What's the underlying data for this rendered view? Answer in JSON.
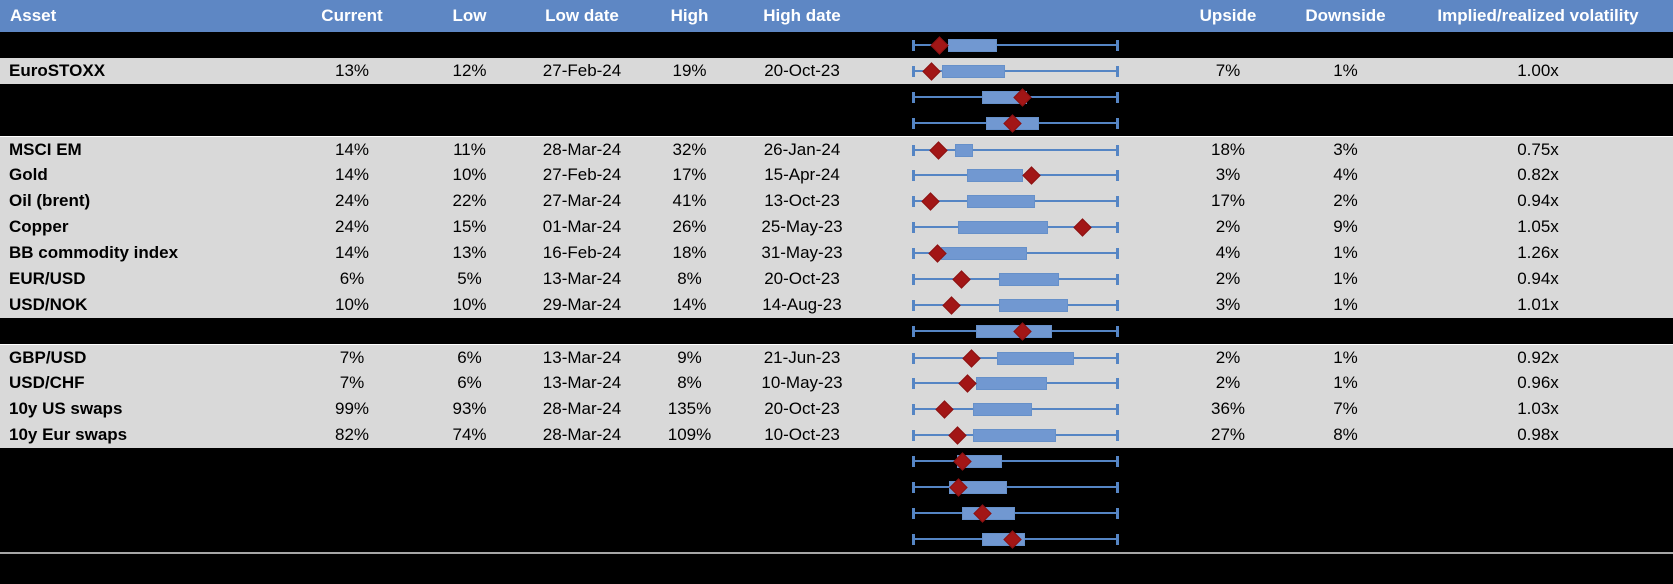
{
  "title": "Implied volatility table with range box plots",
  "colors": {
    "header_bg": "#5e87c4",
    "header_text": "#ffffff",
    "row_bg": "#d9d9d9",
    "spacer_bg": "#000000",
    "box_fill": "#7198d1",
    "whisker": "#5585c4",
    "marker": "#a21616",
    "divider": "#a6a6a6"
  },
  "chart_data": {
    "type": "table",
    "note": "Each row shows a 1y implied-vol range box plot; box/marker values are fractions of the low-high whisker span (0 = left whisker cap, 1 = right whisker cap).",
    "columns": [
      "Asset",
      "Current",
      "Low",
      "Low date",
      "High",
      "High date",
      "",
      "Upside",
      "Downside",
      "Implied/realized volatility"
    ],
    "rows": [
      {
        "style": "black",
        "box": [
          0.17,
          0.41
        ],
        "marker": 0.13
      },
      {
        "style": "data",
        "asset": "EuroSTOXX",
        "current": "13%",
        "low": "12%",
        "low_date": "27-Feb-24",
        "high": "19%",
        "high_date": "20-Oct-23",
        "upside": "7%",
        "downside": "1%",
        "implied": "1.00x",
        "box": [
          0.14,
          0.45
        ],
        "marker": 0.09
      },
      {
        "style": "black",
        "box": [
          0.34,
          0.56
        ],
        "marker": 0.535
      },
      {
        "style": "black",
        "box": [
          0.36,
          0.62
        ],
        "marker": 0.49
      },
      {
        "style": "data",
        "border_top": true,
        "asset": "MSCI EM",
        "current": "14%",
        "low": "11%",
        "low_date": "28-Mar-24",
        "high": "32%",
        "high_date": "26-Jan-24",
        "upside": "18%",
        "downside": "3%",
        "implied": "0.75x",
        "box": [
          0.205,
          0.295
        ],
        "marker": 0.125
      },
      {
        "style": "data",
        "asset": "Gold",
        "current": "14%",
        "low": "10%",
        "low_date": "27-Feb-24",
        "high": "17%",
        "high_date": "15-Apr-24",
        "upside": "3%",
        "downside": "4%",
        "implied": "0.82x",
        "box": [
          0.265,
          0.54
        ],
        "marker": 0.58
      },
      {
        "style": "data",
        "asset": "Oil (brent)",
        "current": "24%",
        "low": "22%",
        "low_date": "27-Mar-24",
        "high": "41%",
        "high_date": "13-Oct-23",
        "upside": "17%",
        "downside": "2%",
        "implied": "0.94x",
        "box": [
          0.265,
          0.6
        ],
        "marker": 0.085
      },
      {
        "style": "data",
        "asset": "Copper",
        "current": "24%",
        "low": "15%",
        "low_date": "01-Mar-24",
        "high": "26%",
        "high_date": "25-May-23",
        "upside": "2%",
        "downside": "9%",
        "implied": "1.05x",
        "box": [
          0.22,
          0.66
        ],
        "marker": 0.83
      },
      {
        "style": "data",
        "asset": "BB commodity index",
        "current": "14%",
        "low": "13%",
        "low_date": "16-Feb-24",
        "high": "18%",
        "high_date": "31-May-23",
        "upside": "4%",
        "downside": "1%",
        "implied": "1.26x",
        "box": [
          0.135,
          0.56
        ],
        "marker": 0.12
      },
      {
        "style": "data",
        "asset": "EUR/USD",
        "current": "6%",
        "low": "5%",
        "low_date": "13-Mar-24",
        "high": "8%",
        "high_date": "20-Oct-23",
        "upside": "2%",
        "downside": "1%",
        "implied": "0.94x",
        "box": [
          0.42,
          0.715
        ],
        "marker": 0.24
      },
      {
        "style": "data",
        "asset": "USD/NOK",
        "current": "10%",
        "low": "10%",
        "low_date": "29-Mar-24",
        "high": "14%",
        "high_date": "14-Aug-23",
        "upside": "3%",
        "downside": "1%",
        "implied": "1.01x",
        "box": [
          0.42,
          0.76
        ],
        "marker": 0.19
      },
      {
        "style": "black",
        "box": [
          0.31,
          0.68
        ],
        "marker": 0.535
      },
      {
        "style": "data",
        "border_top": true,
        "asset": "GBP/USD",
        "current": "7%",
        "low": "6%",
        "low_date": "13-Mar-24",
        "high": "9%",
        "high_date": "21-Jun-23",
        "upside": "2%",
        "downside": "1%",
        "implied": "0.92x",
        "box": [
          0.41,
          0.79
        ],
        "marker": 0.285
      },
      {
        "style": "data",
        "asset": "USD/CHF",
        "current": "7%",
        "low": "6%",
        "low_date": "13-Mar-24",
        "high": "8%",
        "high_date": "10-May-23",
        "upside": "2%",
        "downside": "1%",
        "implied": "0.96x",
        "box": [
          0.31,
          0.655
        ],
        "marker": 0.265
      },
      {
        "style": "data",
        "asset": "10y US swaps",
        "current": "99%",
        "low": "93%",
        "low_date": "28-Mar-24",
        "high": "135%",
        "high_date": "20-Oct-23",
        "upside": "36%",
        "downside": "7%",
        "implied": "1.03x",
        "box": [
          0.295,
          0.585
        ],
        "marker": 0.155
      },
      {
        "style": "data",
        "asset": "10y Eur swaps",
        "current": "82%",
        "low": "74%",
        "low_date": "28-Mar-24",
        "high": "109%",
        "high_date": "10-Oct-23",
        "upside": "27%",
        "downside": "8%",
        "implied": "0.98x",
        "box": [
          0.295,
          0.7
        ],
        "marker": 0.22
      },
      {
        "style": "black",
        "box": [
          0.215,
          0.435
        ],
        "marker": 0.245
      },
      {
        "style": "black",
        "box": [
          0.175,
          0.46
        ],
        "marker": 0.225
      },
      {
        "style": "black",
        "box": [
          0.24,
          0.5
        ],
        "marker": 0.34
      },
      {
        "style": "black",
        "box": [
          0.34,
          0.55
        ],
        "marker": 0.49
      }
    ]
  }
}
